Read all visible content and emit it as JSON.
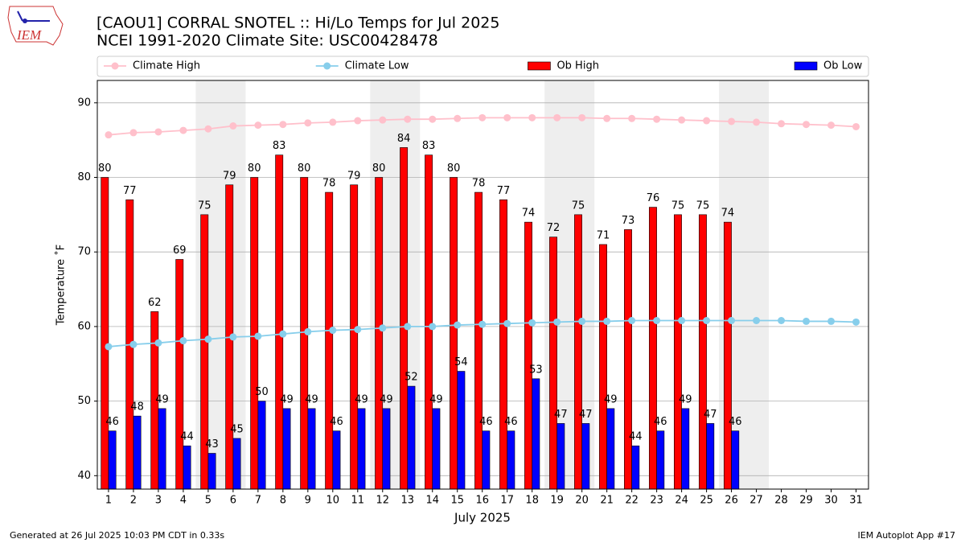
{
  "chart_data": {
    "type": "bar",
    "title": "[CAOU1] CORRAL SNOTEL :: Hi/Lo Temps for Jul 2025",
    "subtitle": "NCEI 1991-2020 Climate Site: USC00428478",
    "xlabel": "July 2025",
    "ylabel": "Temperature ˚F",
    "footer_left": "Generated at 26 Jul 2025 10:03 PM CDT in 0.33s",
    "footer_right": "IEM Autoplot App #17",
    "logo_text": "IEM",
    "x": [
      1,
      2,
      3,
      4,
      5,
      6,
      7,
      8,
      9,
      10,
      11,
      12,
      13,
      14,
      15,
      16,
      17,
      18,
      19,
      20,
      21,
      22,
      23,
      24,
      25,
      26,
      27,
      28,
      29,
      30,
      31
    ],
    "xlim": [
      0.55,
      31.5
    ],
    "xticks": [
      1,
      2,
      3,
      4,
      5,
      6,
      7,
      8,
      9,
      10,
      11,
      12,
      13,
      14,
      15,
      16,
      17,
      18,
      19,
      20,
      21,
      22,
      23,
      24,
      25,
      26,
      27,
      28,
      29,
      30,
      31
    ],
    "ylim": [
      38.2,
      93.0
    ],
    "yticks": [
      40,
      50,
      60,
      70,
      80,
      90
    ],
    "grid": true,
    "weekend_spans": [
      [
        4.5,
        6.5
      ],
      [
        11.5,
        13.5
      ],
      [
        18.5,
        20.5
      ],
      [
        25.5,
        27.5
      ]
    ],
    "series": [
      {
        "name": "Climate High",
        "type": "line",
        "color": "#ffc0cb",
        "values": [
          85.7,
          86.0,
          86.1,
          86.3,
          86.5,
          86.9,
          87.0,
          87.1,
          87.3,
          87.4,
          87.6,
          87.7,
          87.8,
          87.8,
          87.9,
          88.0,
          88.0,
          88.0,
          88.0,
          88.0,
          87.9,
          87.9,
          87.8,
          87.7,
          87.6,
          87.5,
          87.4,
          87.2,
          87.1,
          87.0,
          86.8
        ]
      },
      {
        "name": "Climate Low",
        "type": "line",
        "color": "#87ceeb",
        "values": [
          57.3,
          57.6,
          57.8,
          58.1,
          58.3,
          58.6,
          58.7,
          59.0,
          59.3,
          59.5,
          59.6,
          59.8,
          60.0,
          60.0,
          60.2,
          60.3,
          60.4,
          60.5,
          60.6,
          60.7,
          60.7,
          60.8,
          60.8,
          60.8,
          60.8,
          60.8,
          60.8,
          60.8,
          60.7,
          60.7,
          60.6
        ]
      },
      {
        "name": "Ob High",
        "type": "bar",
        "color": "#ff0000",
        "values": [
          80,
          77,
          62,
          69,
          75,
          79,
          80,
          83,
          80,
          78,
          79,
          80,
          84,
          83,
          80,
          78,
          77,
          74,
          72,
          75,
          71,
          73,
          76,
          75,
          75,
          74,
          null,
          null,
          null,
          null,
          null
        ]
      },
      {
        "name": "Ob Low",
        "type": "bar",
        "color": "#0000ff",
        "values": [
          46,
          48,
          49,
          44,
          43,
          45,
          50,
          49,
          49,
          46,
          49,
          49,
          52,
          49,
          54,
          46,
          46,
          53,
          47,
          47,
          49,
          44,
          46,
          49,
          47,
          46,
          null,
          null,
          null,
          null,
          null
        ]
      }
    ]
  }
}
